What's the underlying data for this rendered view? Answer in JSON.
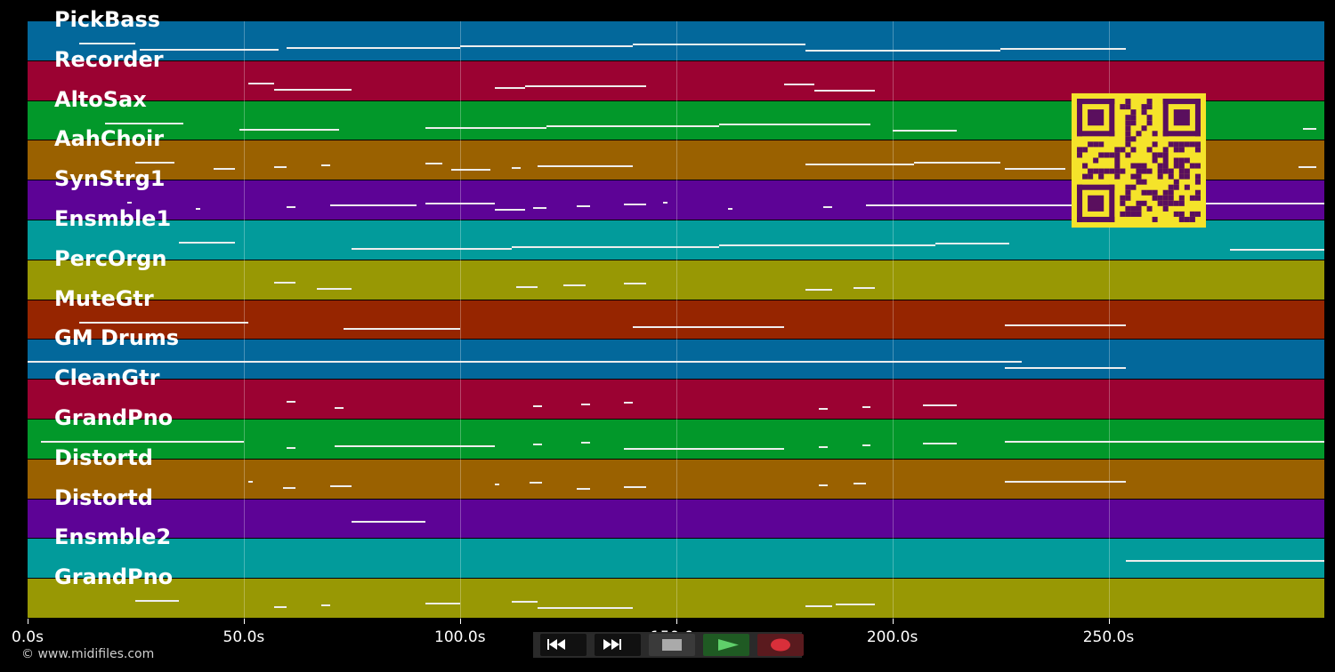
{
  "tracks": [
    {
      "name": "PickBass",
      "color": "#03689b"
    },
    {
      "name": "Recorder",
      "color": "#9b0232"
    },
    {
      "name": "AltoSax",
      "color": "#02982a"
    },
    {
      "name": "AahChoir",
      "color": "#9a6100"
    },
    {
      "name": "SynStrg1",
      "color": "#5d0396"
    },
    {
      "name": "Ensmble1",
      "color": "#029b9b"
    },
    {
      "name": "PercOrgn",
      "color": "#989804"
    },
    {
      "name": "MuteGtr",
      "color": "#962500"
    },
    {
      "name": "GM Drums",
      "color": "#03689b"
    },
    {
      "name": "CleanGtr",
      "color": "#9b0232"
    },
    {
      "name": "GrandPno",
      "color": "#02982a"
    },
    {
      "name": "Distortd",
      "color": "#9a6100"
    },
    {
      "name": "Distortd",
      "color": "#5d0396"
    },
    {
      "name": "Ensmble2",
      "color": "#029b9b"
    },
    {
      "name": "GrandPno",
      "color": "#989804"
    }
  ],
  "timeline": {
    "max_seconds": 300,
    "ticks": [
      "0.0s",
      "50.0s",
      "100.0s",
      "150.0s",
      "200.0s",
      "250.0s"
    ],
    "tick_values": [
      0,
      50,
      100,
      150,
      200,
      250
    ]
  },
  "notes": [
    [
      [
        12,
        25
      ],
      [
        26,
        58
      ],
      [
        60,
        100
      ],
      [
        100,
        140
      ],
      [
        140,
        180
      ],
      [
        180,
        225
      ],
      [
        225,
        254
      ]
    ],
    [
      [
        51,
        57
      ],
      [
        57,
        75
      ],
      [
        108,
        115
      ],
      [
        115,
        143
      ],
      [
        175,
        182
      ],
      [
        182,
        196
      ]
    ],
    [
      [
        18,
        36
      ],
      [
        49,
        72
      ],
      [
        92,
        120
      ],
      [
        120,
        160
      ],
      [
        160,
        195
      ],
      [
        200,
        215
      ],
      [
        295,
        298
      ]
    ],
    [
      [
        25,
        34
      ],
      [
        43,
        48
      ],
      [
        57,
        60
      ],
      [
        68,
        70
      ],
      [
        92,
        96
      ],
      [
        98,
        107
      ],
      [
        112,
        114
      ],
      [
        118,
        140
      ],
      [
        180,
        205
      ],
      [
        205,
        225
      ],
      [
        226,
        240
      ],
      [
        294,
        298
      ]
    ],
    [
      [
        23,
        24
      ],
      [
        39,
        40
      ],
      [
        60,
        62
      ],
      [
        70,
        90
      ],
      [
        92,
        108
      ],
      [
        108,
        115
      ],
      [
        117,
        120
      ],
      [
        127,
        130
      ],
      [
        138,
        143
      ],
      [
        147,
        148
      ],
      [
        162,
        163
      ],
      [
        184,
        186
      ],
      [
        194,
        250
      ],
      [
        250,
        300
      ]
    ],
    [
      [
        35,
        48
      ],
      [
        75,
        112
      ],
      [
        112,
        160
      ],
      [
        160,
        210
      ],
      [
        210,
        227
      ],
      [
        278,
        300
      ]
    ],
    [
      [
        57,
        62
      ],
      [
        67,
        75
      ],
      [
        113,
        118
      ],
      [
        124,
        129
      ],
      [
        138,
        143
      ],
      [
        180,
        186
      ],
      [
        191,
        196
      ]
    ],
    [
      [
        12,
        51
      ],
      [
        73,
        100
      ],
      [
        140,
        175
      ],
      [
        226,
        254
      ]
    ],
    [
      [
        0,
        230
      ],
      [
        226,
        254
      ]
    ],
    [
      [
        60,
        62
      ],
      [
        71,
        73
      ],
      [
        117,
        119
      ],
      [
        128,
        130
      ],
      [
        138,
        140
      ],
      [
        183,
        185
      ],
      [
        193,
        195
      ],
      [
        207,
        215
      ]
    ],
    [
      [
        3,
        50
      ],
      [
        60,
        62
      ],
      [
        71,
        108
      ],
      [
        117,
        119
      ],
      [
        128,
        130
      ],
      [
        138,
        175
      ],
      [
        183,
        185
      ],
      [
        193,
        195
      ],
      [
        207,
        215
      ],
      [
        226,
        300
      ]
    ],
    [
      [
        51,
        52
      ],
      [
        59,
        62
      ],
      [
        70,
        75
      ],
      [
        108,
        109
      ],
      [
        116,
        119
      ],
      [
        127,
        130
      ],
      [
        138,
        143
      ],
      [
        183,
        185
      ],
      [
        191,
        194
      ],
      [
        226,
        254
      ]
    ],
    [
      [
        75,
        92
      ]
    ],
    [
      [
        254,
        300
      ]
    ],
    [
      [
        25,
        35
      ],
      [
        57,
        60
      ],
      [
        68,
        70
      ],
      [
        92,
        100
      ],
      [
        112,
        118
      ],
      [
        118,
        140
      ],
      [
        180,
        186
      ],
      [
        187,
        196
      ]
    ]
  ],
  "copyright": "© www.midifiles.com",
  "transport": {
    "rewind_icon": "rewind-icon",
    "forward_icon": "fast-forward-icon",
    "stop_icon": "stop-icon",
    "play_icon": "play-icon",
    "record_icon": "record-icon",
    "play_color": "#5fcf6a",
    "record_color": "#d92f3a"
  },
  "qr": {
    "icon": "qr-code-icon",
    "bg": "#f5e32a",
    "fg": "#5a0f5e"
  }
}
